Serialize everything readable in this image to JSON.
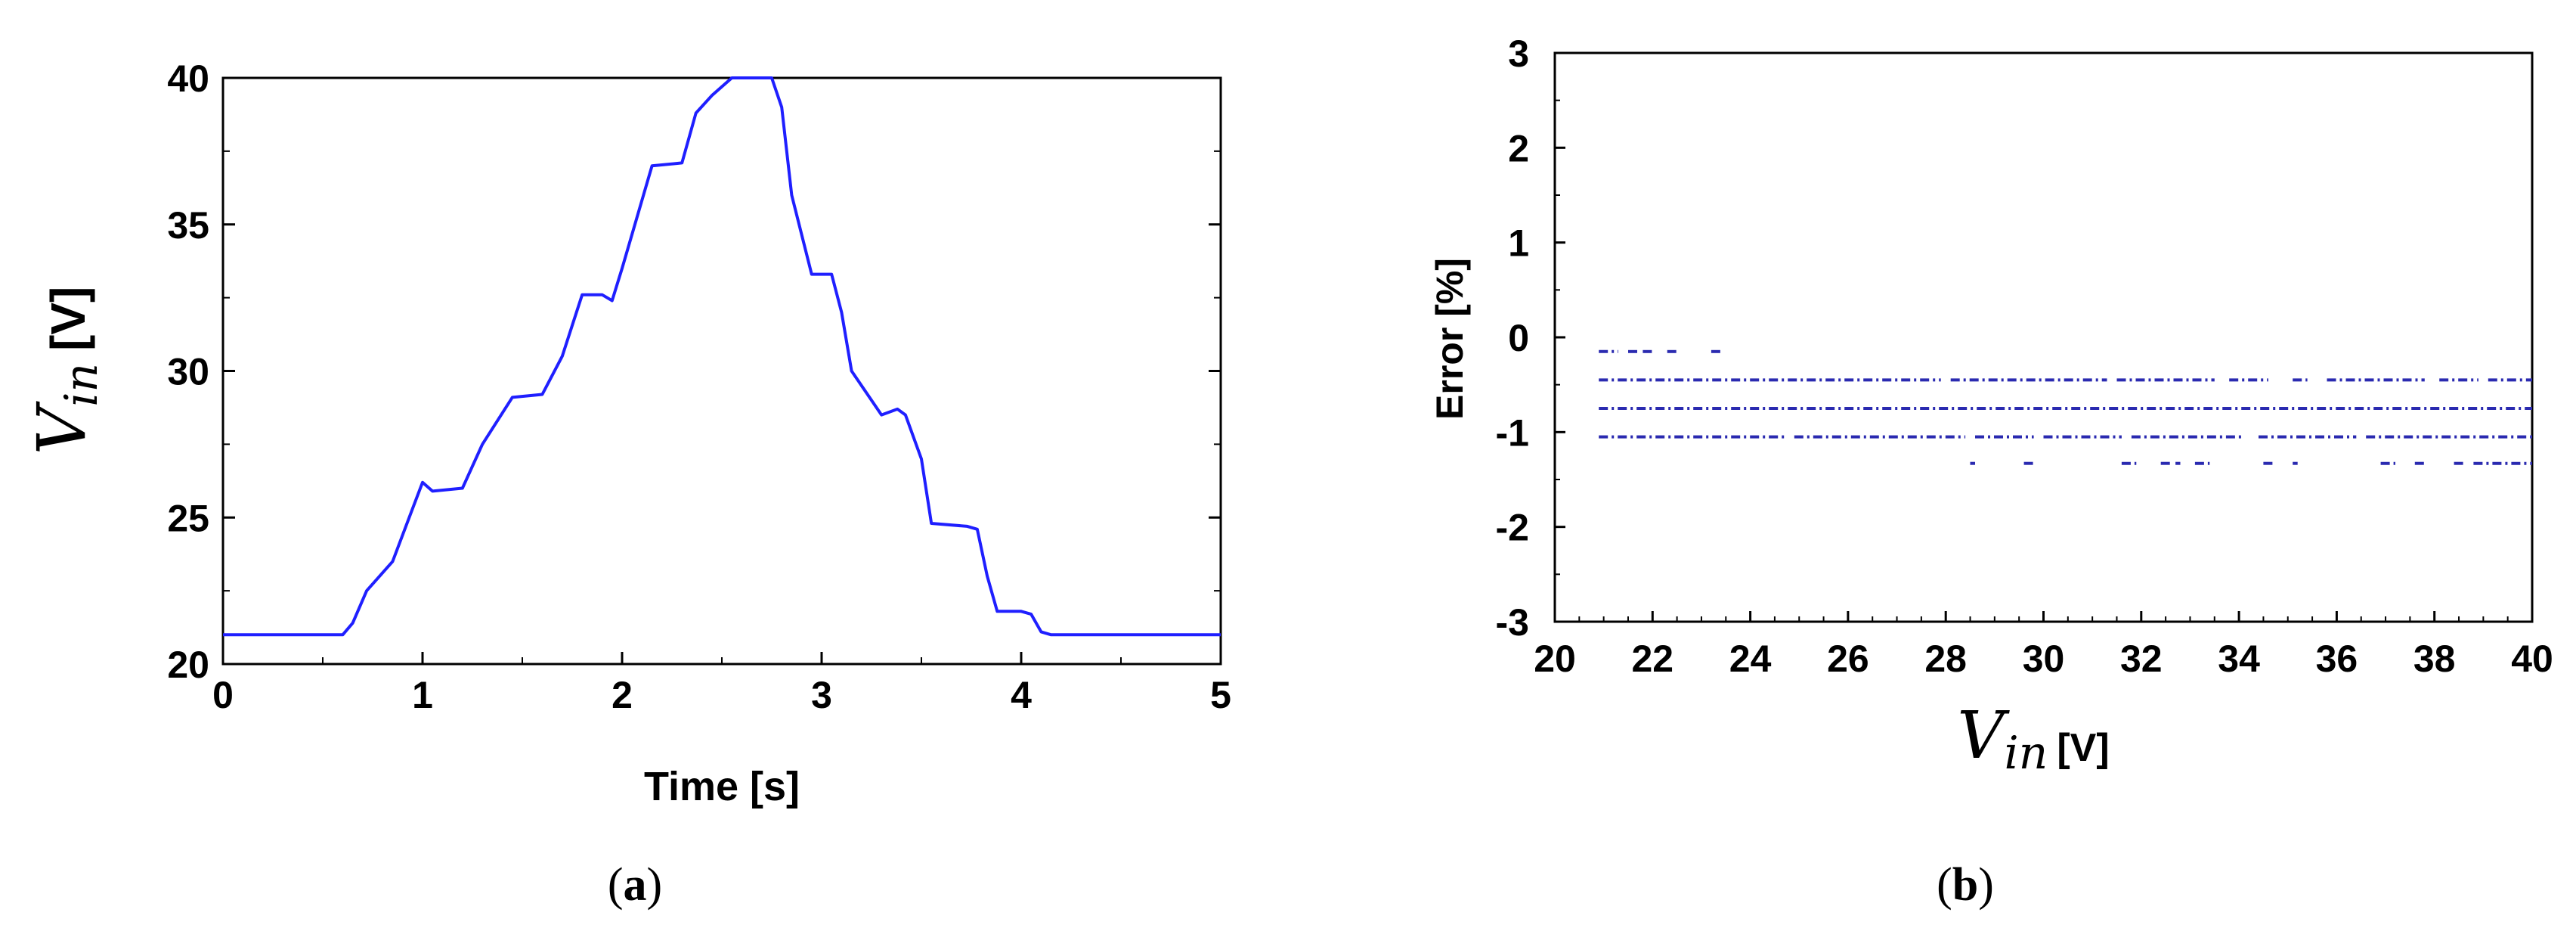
{
  "chart_data": [
    {
      "type": "line",
      "panel_label": "a",
      "xlabel": "Time [s]",
      "ylabel_symbol": "V",
      "ylabel_subscript": "in",
      "ylabel_unit": "[V]",
      "xlim": [
        0,
        5
      ],
      "ylim": [
        20,
        40
      ],
      "xticks": [
        0,
        1,
        2,
        3,
        4,
        5
      ],
      "yticks": [
        20,
        25,
        30,
        35,
        40
      ],
      "grid": false,
      "color": "#1f1fff",
      "series": [
        {
          "x": [
            0,
            0.6,
            0.65,
            0.72,
            0.85,
            0.95,
            1.0,
            1.05,
            1.2,
            1.3,
            1.45,
            1.6,
            1.7,
            1.8,
            1.9,
            1.95,
            2.0,
            2.15,
            2.3,
            2.37,
            2.45,
            2.55,
            2.75,
            2.8,
            2.85,
            2.95,
            3.05,
            3.1,
            3.15,
            3.3,
            3.38,
            3.42,
            3.5,
            3.55,
            3.73,
            3.78,
            3.83,
            3.88,
            4.0,
            4.05,
            4.1,
            4.15,
            5.0
          ],
          "y": [
            21.0,
            21.0,
            21.4,
            22.5,
            23.5,
            25.3,
            26.2,
            25.9,
            26.0,
            27.5,
            29.1,
            29.2,
            30.5,
            32.6,
            32.6,
            32.4,
            33.5,
            37.0,
            37.1,
            38.8,
            39.4,
            40.0,
            40.0,
            39.0,
            36.0,
            33.3,
            33.3,
            32.0,
            30.0,
            28.5,
            28.7,
            28.5,
            27.0,
            24.8,
            24.7,
            24.6,
            23.0,
            21.8,
            21.8,
            21.7,
            21.1,
            21.0,
            21.0
          ]
        }
      ]
    },
    {
      "type": "scatter",
      "panel_label": "b",
      "xlabel_symbol": "V",
      "xlabel_subscript": "in",
      "xlabel_unit": "[V]",
      "ylabel": "Error  [%]",
      "xlim": [
        20,
        40
      ],
      "ylim": [
        -3,
        3
      ],
      "xticks": [
        20,
        22,
        24,
        26,
        28,
        30,
        32,
        34,
        36,
        38,
        40
      ],
      "yticks": [
        3,
        2,
        1,
        0,
        -1,
        -2,
        -3
      ],
      "grid": false,
      "color": "#2a2ab0",
      "series": [
        {
          "y": -0.15,
          "segments": [
            [
              20.9,
              21.3
            ],
            [
              21.5,
              21.7
            ],
            [
              21.8,
              22.0
            ],
            [
              22.3,
              22.5
            ],
            [
              23.2,
              23.4
            ]
          ]
        },
        {
          "y": -0.45,
          "segments": [
            [
              20.9,
              27.9
            ],
            [
              28.1,
              31.3
            ],
            [
              31.5,
              33.5
            ],
            [
              33.8,
              34.6
            ],
            [
              35.1,
              35.4
            ],
            [
              35.8,
              37.8
            ],
            [
              38.1,
              38.9
            ],
            [
              39.1,
              40.0
            ]
          ]
        },
        {
          "y": -0.75,
          "segments": [
            [
              20.9,
              40.0
            ]
          ]
        },
        {
          "y": -1.05,
          "segments": [
            [
              20.9,
              24.7
            ],
            [
              24.9,
              28.4
            ],
            [
              28.6,
              29.8
            ],
            [
              30.0,
              31.6
            ],
            [
              31.8,
              34.1
            ],
            [
              34.4,
              36.4
            ],
            [
              36.6,
              40.0
            ]
          ]
        },
        {
          "y": -1.33,
          "segments": [
            [
              28.5,
              28.6
            ],
            [
              29.6,
              29.8
            ],
            [
              31.6,
              31.9
            ],
            [
              32.4,
              32.6
            ],
            [
              32.7,
              32.8
            ],
            [
              33.1,
              33.4
            ],
            [
              34.5,
              34.7
            ],
            [
              35.1,
              35.2
            ],
            [
              36.9,
              37.2
            ],
            [
              37.6,
              37.8
            ],
            [
              38.4,
              38.6
            ],
            [
              38.8,
              40.0
            ]
          ]
        }
      ]
    }
  ]
}
